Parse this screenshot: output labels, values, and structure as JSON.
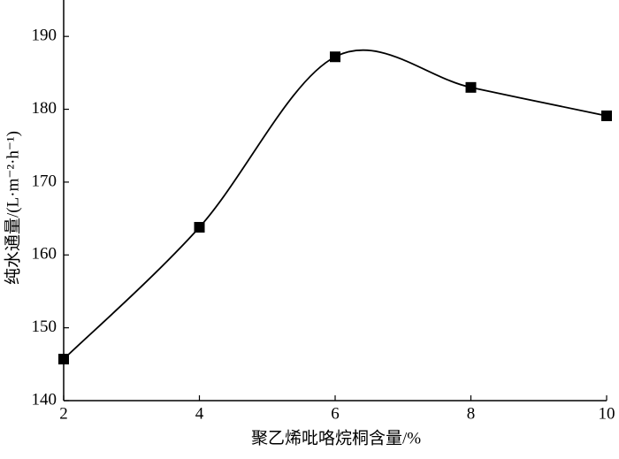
{
  "chart_data": {
    "type": "line",
    "x_label": "聚乙烯吡咯烷桐含量/%",
    "y_label": "纯水通量/(L·m⁻²·h⁻¹)",
    "x": [
      2,
      4,
      6,
      8,
      10
    ],
    "series": [
      {
        "name": null,
        "color": "#000000",
        "values": [
          145.7,
          163.8,
          187.2,
          183.0,
          179.1
        ]
      }
    ],
    "xlim": [
      2,
      10
    ],
    "xticks": [
      2,
      4,
      6,
      8,
      10
    ],
    "ylim": [
      140,
      195
    ],
    "yticks": [
      140,
      150,
      160,
      170,
      180,
      190
    ],
    "grid": false,
    "smooth": true,
    "marker": "square"
  }
}
